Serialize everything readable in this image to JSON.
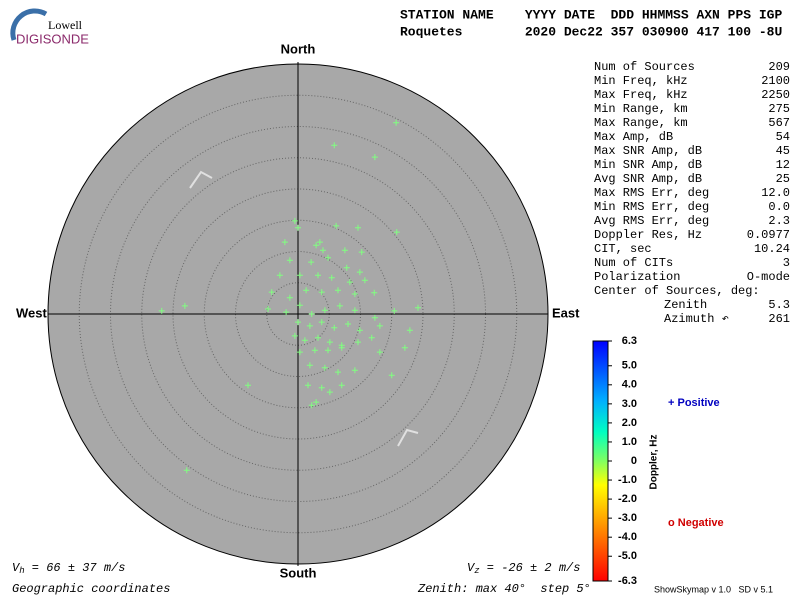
{
  "logo": {
    "top": "Lowell",
    "bottom": "DIGISONDE"
  },
  "header": {
    "labels": "STATION NAME    YYYY DATE  DDD HHMMSS AXN PPS IGP",
    "values": "Roquetes        2020 Dec22 357 030900 417 100 -8U"
  },
  "stats": [
    {
      "label": "Num of Sources",
      "value": "209"
    },
    {
      "label": "Min Freq, kHz",
      "value": "2100"
    },
    {
      "label": "Max Freq, kHz",
      "value": "2250"
    },
    {
      "label": "Min Range, km",
      "value": "275"
    },
    {
      "label": "Max Range, km",
      "value": "567"
    },
    {
      "label": "Max Amp, dB",
      "value": "54"
    },
    {
      "label": "Max SNR Amp, dB",
      "value": "45"
    },
    {
      "label": "Min SNR Amp, dB",
      "value": "12"
    },
    {
      "label": "Avg SNR Amp, dB",
      "value": "25"
    },
    {
      "label": "Max RMS Err, deg",
      "value": "12.0"
    },
    {
      "label": "Min RMS Err, deg",
      "value": "0.0"
    },
    {
      "label": "Avg RMS Err, deg",
      "value": "2.3"
    },
    {
      "label": "Doppler Res, Hz",
      "value": "0.0977"
    },
    {
      "label": "CIT, sec",
      "value": "10.24"
    },
    {
      "label": "Num of CITs",
      "value": "3"
    },
    {
      "label": "Polarization",
      "value": "O-mode"
    },
    {
      "label": "Center of Sources, deg:"
    },
    {
      "label": "Zenith",
      "value": "5.3"
    },
    {
      "label": "Azimuth ↶",
      "value": "261"
    }
  ],
  "chart_data": {
    "type": "skymap",
    "directions": {
      "north": "North",
      "south": "South",
      "east": "East",
      "west": "West"
    },
    "rlim": [
      0,
      40
    ],
    "rstep": 5,
    "color": "#80ff80",
    "x": [
      15.7,
      5.8,
      12.3,
      -0.5,
      0,
      3.5,
      6.1,
      9.6,
      15.8,
      -2.1,
      2.9,
      4.0,
      7.5,
      10.2,
      -1.3,
      2.1,
      4.8,
      7.8,
      9.9,
      -2.9,
      0.3,
      3.2,
      5.4,
      8.3,
      10.7,
      -4.2,
      -1.3,
      1.3,
      3.8,
      6.4,
      9.1,
      12.2,
      -18.1,
      -21.8,
      -4.8,
      -1.9,
      0.3,
      2.2,
      4.3,
      6.7,
      9.1,
      12.3,
      19.2,
      15.4,
      0,
      1.9,
      3.8,
      5.8,
      8.0,
      9.9,
      13.1,
      17.9,
      -0.5,
      1.1,
      3.2,
      5.1,
      7.0,
      9.6,
      11.8,
      0.3,
      2.7,
      4.8,
      7.0,
      13.1,
      17.1,
      1.9,
      4.3,
      6.4,
      9.1,
      15.0,
      1.6,
      3.8,
      7.0,
      5.1,
      2.9,
      2.2,
      -8.0,
      -17.8
    ],
    "y": [
      30.6,
      27.0,
      25.1,
      14.9,
      13.8,
      11.5,
      14.1,
      13.8,
      13.1,
      11.5,
      11.0,
      10.2,
      10.2,
      9.9,
      8.6,
      8.3,
      9.0,
      7.4,
      6.7,
      6.2,
      6.2,
      6.2,
      5.8,
      5.1,
      5.4,
      3.5,
      2.6,
      3.8,
      3.5,
      3.8,
      3.2,
      3.4,
      1.3,
      0.5,
      0.8,
      0.3,
      1.4,
      0,
      0.6,
      1.3,
      0.6,
      -0.6,
      1.0,
      0.5,
      -1.3,
      -1.9,
      -1.3,
      -2.2,
      -1.6,
      -2.6,
      -1.9,
      -2.6,
      -3.5,
      -4.2,
      -3.8,
      -4.5,
      -5.0,
      -4.5,
      -3.8,
      -6.1,
      -5.8,
      -5.8,
      -5.4,
      -6.1,
      -5.4,
      -8.2,
      -8.6,
      -9.3,
      -9.0,
      -9.8,
      -11.4,
      -11.8,
      -11.4,
      -12.5,
      -14.1,
      -14.6,
      -11.4,
      -25.0
    ],
    "colorbar": {
      "title": "Doppler, Hz",
      "lim": [
        -6.3,
        6.3
      ],
      "ticks": [
        6.3,
        {
          "value": 5,
          "label": "5.0"
        },
        {
          "value": 4,
          "label": "4.0"
        },
        {
          "value": 3,
          "label": "3.0"
        },
        {
          "value": 2,
          "label": "2.0"
        },
        {
          "value": 1,
          "label": "1.0"
        },
        0,
        {
          "value": -1,
          "label": "-1.0"
        },
        {
          "value": -2,
          "label": "-2.0"
        },
        {
          "value": -3,
          "label": "-3.0"
        },
        {
          "value": -4,
          "label": "-4.0"
        },
        {
          "value": -5,
          "label": "-5.0"
        },
        -6.3
      ]
    },
    "positive": "+ Positive",
    "negative": "o Negative",
    "vh": {
      "symbol": "V",
      "sub": "h",
      "text": " = 66 ± 37 m/s"
    },
    "vz": {
      "symbol": "V",
      "sub": "z",
      "text": " = -26 ± 2 m/s"
    },
    "coordinates": "Geographic coordinates",
    "zenith_note": "Zenith: max 40°  step 5°",
    "version": "ShowSkymap v 1.0   SD v 5.1"
  }
}
